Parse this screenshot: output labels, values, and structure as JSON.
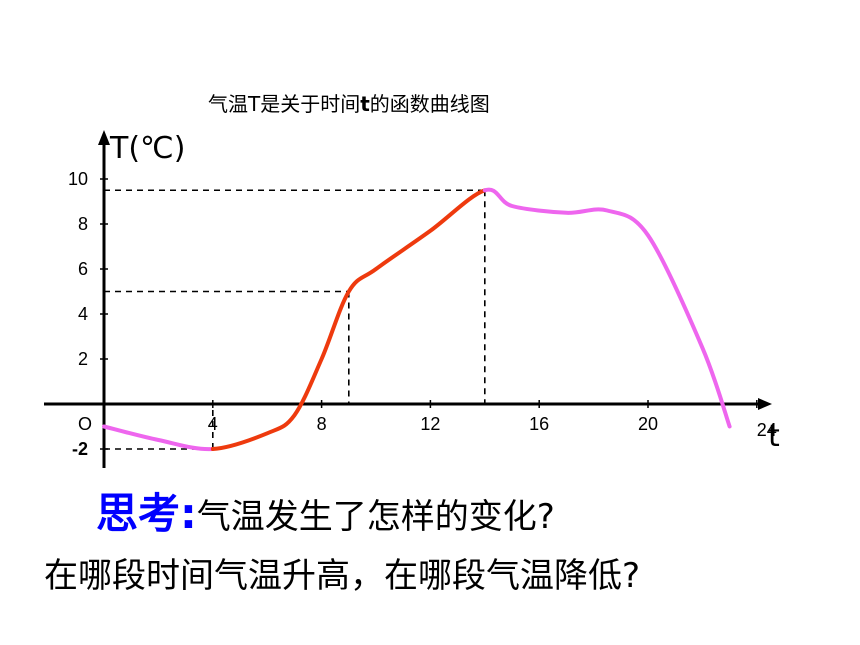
{
  "title": {
    "before": "气温T是关于时间",
    "var": "t",
    "after": "的函数曲线图"
  },
  "question": {
    "head": "思考:",
    "line1": "气温发生了怎样的变化?",
    "line2": "在哪段时间气温升高，在哪段气温降低?"
  },
  "chart_data": {
    "type": "line",
    "xlabel": "t",
    "ylabel": "T(℃)",
    "origin_label": "O",
    "x_ticks": [
      "4",
      "8",
      "12",
      "16",
      "20",
      "24"
    ],
    "y_ticks": [
      "10",
      "8",
      "6",
      "4",
      "2",
      "-2"
    ],
    "xlim": [
      0,
      24
    ],
    "ylim": [
      -2,
      10
    ],
    "grid": false,
    "colors": {
      "rising": "#ee3a0e",
      "falling": "#ee66ee",
      "axis": "#000000",
      "guide": "#000000"
    },
    "series": [
      {
        "x": [
          0,
          2,
          4,
          6,
          7,
          8,
          9,
          10,
          12,
          14,
          15,
          17,
          18.5,
          20,
          22,
          23
        ],
        "y": [
          -1,
          -1.6,
          -2,
          -1.3,
          -0.5,
          2,
          5,
          6,
          7.7,
          9.5,
          8.8,
          8.5,
          8.6,
          7.5,
          2.5,
          -1
        ]
      }
    ],
    "segments": [
      {
        "from": 0,
        "to": 4,
        "trend": "falling"
      },
      {
        "from": 4,
        "to": 14,
        "trend": "rising"
      },
      {
        "from": 14,
        "to": 23,
        "trend": "falling"
      }
    ],
    "guides": [
      {
        "x": 4,
        "y": -2
      },
      {
        "x": 9,
        "y": 5
      },
      {
        "x": 14,
        "y": 9.5
      }
    ]
  }
}
